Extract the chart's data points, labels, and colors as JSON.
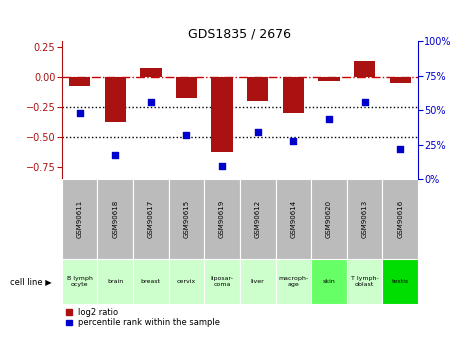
{
  "title": "GDS1835 / 2676",
  "samples": [
    "GSM90611",
    "GSM90618",
    "GSM90617",
    "GSM90615",
    "GSM90619",
    "GSM90612",
    "GSM90614",
    "GSM90620",
    "GSM90613",
    "GSM90616"
  ],
  "cell_lines": [
    "B lymph\nocyte",
    "brain",
    "breast",
    "cervix",
    "liposar-\ncoma",
    "liver",
    "macroph-\nage",
    "skin",
    "T lymph-\noblast",
    "testis"
  ],
  "cell_line_colors": [
    "#ccffcc",
    "#ccffcc",
    "#ccffcc",
    "#ccffcc",
    "#ccffcc",
    "#ccffcc",
    "#ccffcc",
    "#66ff66",
    "#ccffcc",
    "#00dd00"
  ],
  "log2_ratio": [
    -0.07,
    -0.37,
    0.08,
    -0.17,
    -0.62,
    -0.2,
    -0.3,
    -0.03,
    0.14,
    -0.05
  ],
  "percentile_rank": [
    48,
    18,
    56,
    32,
    10,
    34,
    28,
    44,
    56,
    22
  ],
  "ylim_left": [
    -0.85,
    0.3
  ],
  "ylim_right": [
    0,
    100
  ],
  "yticks_left": [
    0.25,
    0.0,
    -0.25,
    -0.5,
    -0.75
  ],
  "yticks_right": [
    100,
    75,
    50,
    25,
    0
  ],
  "bar_color": "#aa1111",
  "dot_color": "#0000cc",
  "hline_color": "#cc0000",
  "dotted_line_color": "#000000",
  "bg_color": "#ffffff",
  "sample_bg": "#bbbbbb",
  "figsize": [
    4.75,
    3.45
  ],
  "dpi": 100
}
